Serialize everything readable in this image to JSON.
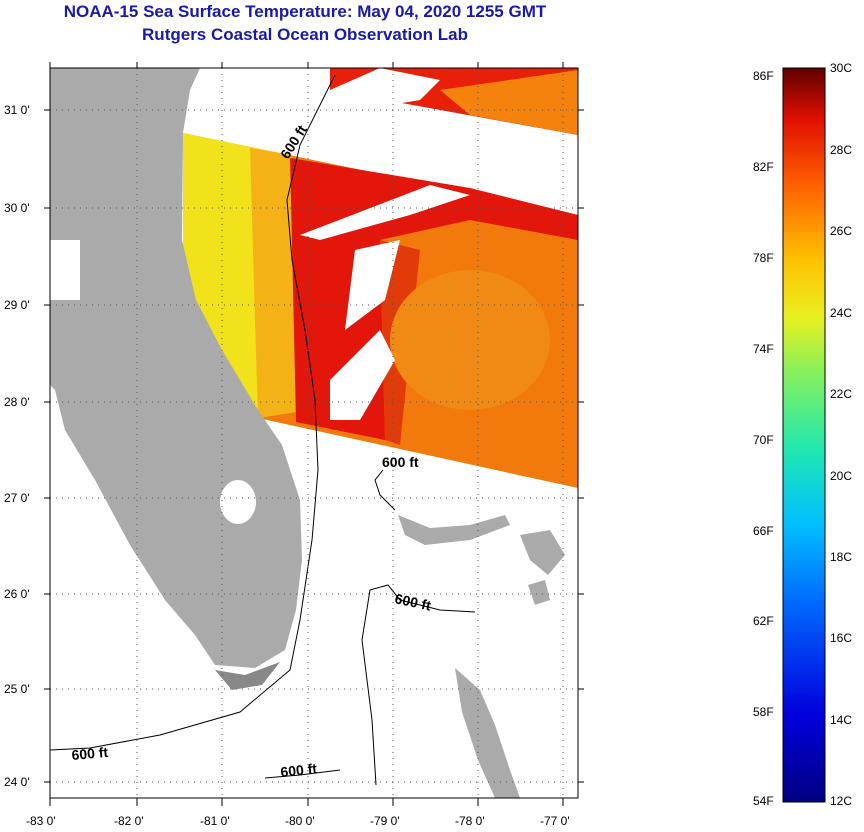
{
  "title": {
    "line1": "NOAA-15 Sea Surface Temperature:  May 04, 2020 1255 GMT",
    "line2": "Rutgers Coastal Ocean Observation Lab"
  },
  "map": {
    "lat_labels": [
      "31 0'",
      "30 0'",
      "29 0'",
      "28 0'",
      "27 0'",
      "26 0'",
      "25 0'",
      "24 0'"
    ],
    "lon_labels": [
      "-83 0'",
      "-82 0'",
      "-81 0'",
      "-80 0'",
      "-79 0'",
      "-78 0'",
      "-77 0'"
    ],
    "contour_labels": [
      "600 ft",
      "600 ft",
      "600 ft",
      "600 ft",
      "600 ft"
    ]
  },
  "colorbar": {
    "fahrenheit": [
      "86F",
      "82F",
      "78F",
      "74F",
      "70F",
      "66F",
      "62F",
      "58F",
      "54F"
    ],
    "celsius": [
      "30C",
      "28C",
      "26C",
      "24C",
      "22C",
      "20C",
      "18C",
      "16C",
      "14C",
      "12C"
    ]
  },
  "colors": {
    "title": "#1a1aa8",
    "land": "#aaaaaa",
    "cloud": "#ffffff",
    "warm_red": "#e0120a",
    "orange": "#f5780a",
    "yellow": "#f0e418"
  }
}
